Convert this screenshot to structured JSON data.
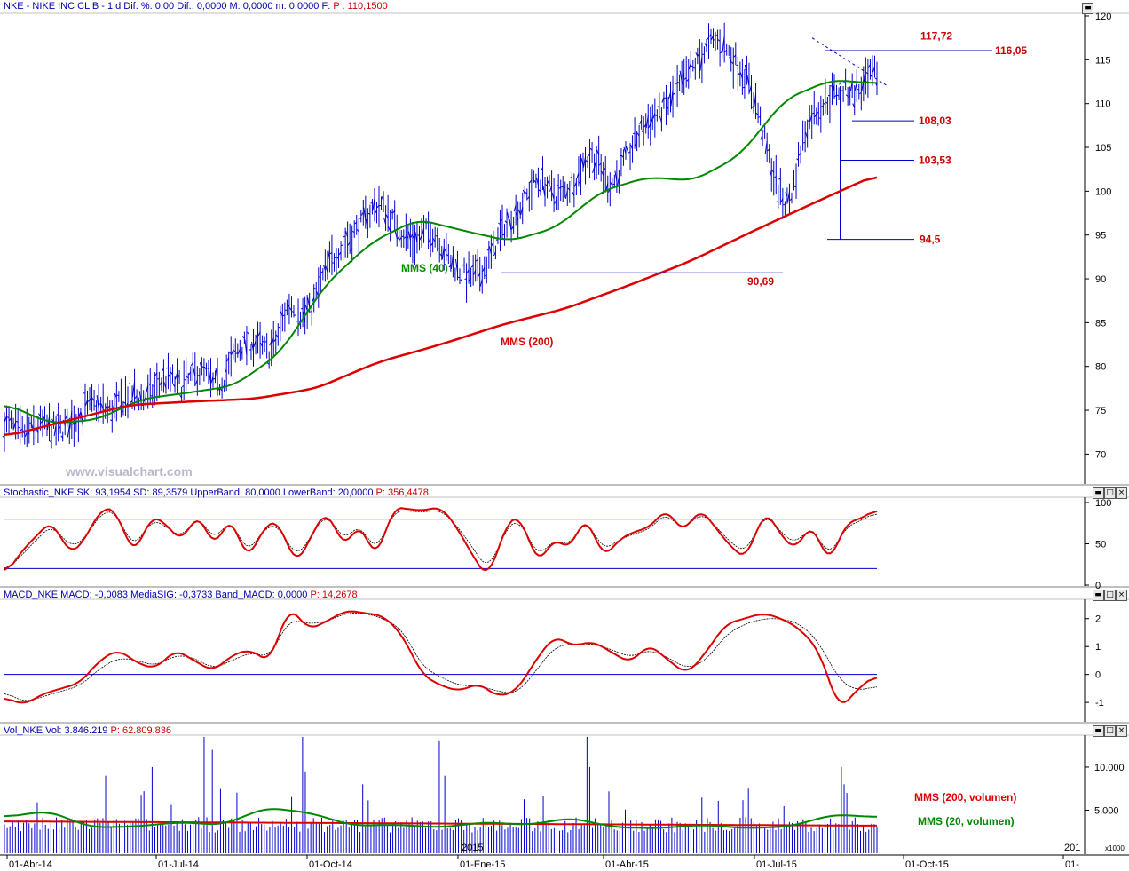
{
  "header": {
    "main": {
      "label": "NKE - NIKE INC CL B - 1 d  Dif. %: 0,00  Dif.: 0,0000  M: 0,0000  m: 0,0000  F:",
      "value": "P : 110,1500"
    },
    "stoch": {
      "label": "Stochastic_NKE  SK: 93,1954  SD: 89,3579  UpperBand: 80,0000  LowerBand: 20,0000",
      "value": "P: 356,4478"
    },
    "macd": {
      "label": "MACD_NKE  MACD: -0,0083  MediaSIG: -0,3733  Band_MACD: 0,0000",
      "value": "P: 14,2678"
    },
    "vol": {
      "label": "Vol_NKE  Vol: 3.846.219",
      "value": "P: 62.809.836"
    }
  },
  "watermark": "www.visualchart.com",
  "colors": {
    "price": "#0000cc",
    "mms40": "#008800",
    "mms200": "#dd0000",
    "level": "#0000cc",
    "label": "#cc0000"
  },
  "chart_data": [
    {
      "type": "line",
      "subtype": "price bars with moving averages",
      "x_labels": [
        "01-Abr-14",
        "01-Jul-14",
        "01-Oct-14",
        "01-Ene-15",
        "01-Abr-15",
        "01-Jul-15",
        "01-Oct-15",
        "01-"
      ],
      "ylim": [
        67,
        120
      ],
      "yticks": [
        70,
        75,
        80,
        85,
        90,
        95,
        100,
        105,
        110,
        115,
        120
      ],
      "series": [
        {
          "name": "MMS (40)",
          "values": [
            75.8,
            73.5,
            73.9,
            76.3,
            77.0,
            77.8,
            81.5,
            89.4,
            94.2,
            96.8,
            95.5,
            94.3,
            95.8,
            100.0,
            101.6,
            101.2,
            104.0,
            110.5,
            112.7,
            112.3
          ]
        },
        {
          "name": "MMS (200)",
          "values": [
            72.0,
            73.8,
            75.6,
            76.0,
            76.3,
            77.5,
            80.5,
            82.5,
            84.8,
            86.6,
            89.2,
            92.0,
            95.4,
            98.7,
            101.9
          ]
        }
      ],
      "price_path": [
        74,
        72,
        73.5,
        72.5,
        74,
        76,
        74.5,
        77,
        76,
        79,
        77.5,
        80,
        77,
        82,
        83,
        81,
        88,
        85,
        91,
        94,
        96,
        99,
        96,
        94,
        96,
        92,
        90,
        91,
        96,
        98,
        102,
        99,
        101,
        105,
        100,
        104,
        108,
        109,
        112,
        115,
        117.7,
        115,
        112,
        103,
        97,
        108,
        110,
        112,
        111,
        114
      ],
      "levels": [
        {
          "label": "117,72",
          "value": 117.72
        },
        {
          "label": "116,05",
          "value": 116.05
        },
        {
          "label": "108,03",
          "value": 108.03
        },
        {
          "label": "103,53",
          "value": 103.53
        },
        {
          "label": "94,5",
          "value": 94.5
        },
        {
          "label": "90,69",
          "value": 90.69
        }
      ],
      "annotations": [
        "MMS (40)",
        "MMS (200)"
      ]
    },
    {
      "type": "line",
      "name": "Stochastic_NKE",
      "ylim": [
        0,
        100
      ],
      "yticks": [
        0,
        50,
        100
      ],
      "bands": [
        80,
        20
      ],
      "series": [
        {
          "name": "SK",
          "values": [
            10,
            40,
            60,
            80,
            35,
            55,
            95,
            90,
            30,
            85,
            75,
            50,
            92,
            40,
            90,
            25,
            70,
            80,
            20,
            60,
            95,
            40,
            80,
            25,
            95,
            92,
            90,
            96,
            70,
            35,
            5,
            75,
            85,
            20,
            60,
            40,
            90,
            30,
            55,
            65,
            70,
            95,
            60,
            95,
            70,
            45,
            30,
            95,
            62,
            40,
            80,
            20,
            75,
            80,
            93
          ]
        },
        {
          "name": "SD",
          "values": [
            15,
            35,
            55,
            75,
            45,
            55,
            90,
            88,
            40,
            80,
            72,
            55,
            88,
            50,
            85,
            35,
            68,
            75,
            30,
            60,
            90,
            50,
            78,
            35,
            90,
            90,
            88,
            92,
            72,
            45,
            15,
            70,
            80,
            30,
            58,
            45,
            85,
            40,
            55,
            62,
            68,
            90,
            62,
            90,
            72,
            50,
            38,
            90,
            65,
            48,
            75,
            30,
            70,
            78,
            89
          ]
        }
      ]
    },
    {
      "type": "line",
      "name": "MACD_NKE",
      "ylim": [
        -1.6,
        2.5
      ],
      "yticks": [
        -1,
        0,
        1,
        2
      ],
      "series": [
        {
          "name": "MACD",
          "values": [
            -0.8,
            -1.1,
            -0.7,
            -0.5,
            -0.3,
            0.5,
            0.9,
            0.4,
            0.2,
            0.9,
            0.5,
            0.1,
            0.7,
            0.9,
            0.4,
            2.5,
            1.6,
            1.9,
            2.3,
            2.2,
            2.1,
            1.4,
            0.0,
            -0.4,
            -0.6,
            -0.3,
            -0.8,
            -0.6,
            0.5,
            1.4,
            1.0,
            1.2,
            0.8,
            0.4,
            1.1,
            0.5,
            0.0,
            0.8,
            1.8,
            2.0,
            2.2,
            2.0,
            1.6,
            0.8,
            -1.3,
            -0.5,
            0.0
          ]
        },
        {
          "name": "MediaSIG",
          "values": [
            -0.6,
            -1.0,
            -0.8,
            -0.6,
            -0.4,
            0.2,
            0.6,
            0.5,
            0.3,
            0.7,
            0.6,
            0.2,
            0.5,
            0.8,
            0.6,
            2.0,
            1.8,
            1.9,
            2.2,
            2.2,
            2.0,
            1.6,
            0.3,
            -0.1,
            -0.4,
            -0.4,
            -0.6,
            -0.7,
            0.1,
            1.0,
            1.1,
            1.1,
            0.9,
            0.6,
            0.9,
            0.6,
            0.2,
            0.5,
            1.4,
            1.8,
            2.0,
            2.0,
            1.8,
            1.1,
            -0.2,
            -0.6,
            -0.4
          ]
        }
      ]
    },
    {
      "type": "bar",
      "name": "Vol_NKE",
      "unit": "x1000",
      "ylim": [
        0,
        13500
      ],
      "yticks": [
        5000,
        10000
      ],
      "ytick_labels": [
        "5.000",
        "10.000"
      ],
      "x_extra_label": "2015",
      "series": [
        {
          "name": "MMS (200, volumen)",
          "values": [
            3700,
            3650,
            3600,
            3550,
            3500,
            3450,
            3400,
            3350,
            3300,
            3250,
            3200
          ]
        },
        {
          "name": "MMS (20, volumen)",
          "values": [
            4200,
            4900,
            3000,
            3100,
            3600,
            3300,
            5300,
            4700,
            3200,
            3300,
            3000,
            3600,
            3300,
            4100,
            3000,
            2900,
            3300,
            2900,
            3100,
            4500,
            4200
          ]
        }
      ],
      "legend": [
        "MMS (200, volumen)",
        "MMS (20, volumen)"
      ]
    }
  ]
}
